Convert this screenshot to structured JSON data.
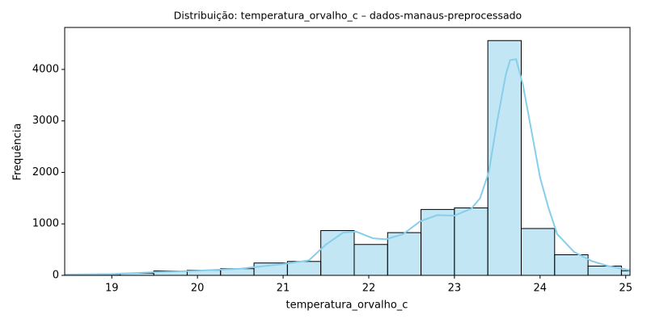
{
  "chart_data": {
    "type": "histogram",
    "title": "Distribuição: temperatura_orvalho_c – dados-manaus-preprocessado",
    "xlabel": "temperatura_orvalho_c",
    "ylabel": "Frequência",
    "bins": [
      18.32,
      18.71,
      19.1,
      19.49,
      19.88,
      20.27,
      20.66,
      21.05,
      21.44,
      21.83,
      22.22,
      22.61,
      23.0,
      23.39,
      23.78,
      24.17,
      24.56,
      24.95,
      25.34
    ],
    "values": [
      10,
      20,
      40,
      85,
      100,
      130,
      240,
      270,
      870,
      600,
      830,
      1280,
      1310,
      4560,
      910,
      400,
      180,
      90
    ],
    "color": "#87ceeb",
    "kde": {
      "x": [
        18.45,
        19,
        19.5,
        20,
        20.5,
        21,
        21.3,
        21.5,
        21.7,
        21.85,
        22.05,
        22.2,
        22.4,
        22.6,
        22.8,
        23.0,
        23.2,
        23.3,
        23.4,
        23.5,
        23.6,
        23.65,
        23.72,
        23.8,
        23.9,
        24.0,
        24.1,
        24.2,
        24.4,
        24.6,
        24.8,
        25.05
      ],
      "values": [
        15,
        25,
        60,
        90,
        130,
        220,
        290,
        600,
        830,
        850,
        720,
        700,
        800,
        1050,
        1170,
        1160,
        1300,
        1500,
        2000,
        3000,
        3900,
        4180,
        4200,
        3700,
        2800,
        1900,
        1300,
        800,
        450,
        280,
        180,
        100
      ]
    },
    "xlim": [
      18.45,
      25.05
    ],
    "ylim": [
      0,
      4815
    ],
    "xticks": [
      19,
      20,
      21,
      22,
      23,
      24,
      25
    ],
    "yticks": [
      0,
      1000,
      2000,
      3000,
      4000
    ]
  }
}
